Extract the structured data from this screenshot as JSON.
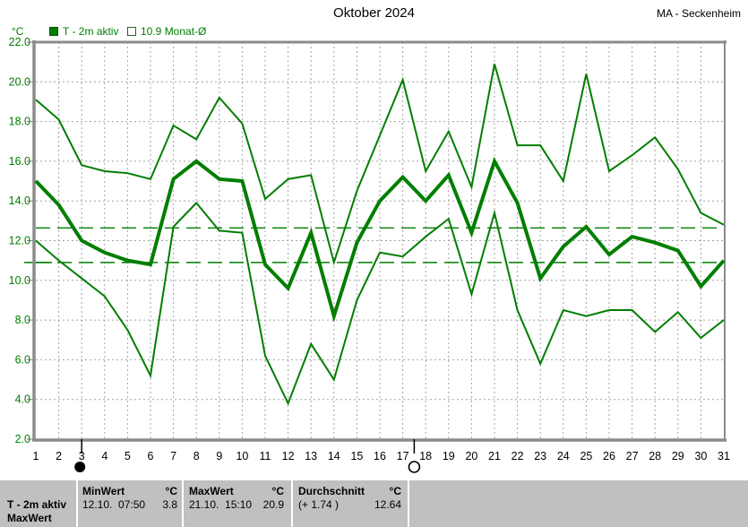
{
  "header": {
    "title": "Oktober 2024",
    "station": "MA - Seckenheim"
  },
  "legend": {
    "unit_label": "°C",
    "active_series_label": "T - 2m aktiv",
    "month_avg_label": "10.9 Monat-Ø"
  },
  "colors": {
    "line_green": "#007e00",
    "label_green": "#007e00",
    "grid_gray": "#a3a3a3",
    "frame_gray": "#8b8b8b",
    "panel_gray": "#c0c0c0",
    "text_black": "#000000"
  },
  "chart_data": {
    "type": "line",
    "title": "Oktober 2024",
    "xlabel": "",
    "ylabel": "°C",
    "ylim": [
      2,
      22
    ],
    "ytick_step": 2,
    "ytick_labels": [
      "22.0",
      "20.0",
      "18.0",
      "16.0",
      "14.0",
      "12.0",
      "10.0",
      "8.0",
      "6.0",
      "4.0",
      "2.0"
    ],
    "grid": true,
    "legend_position": "top-left",
    "categories": [
      1,
      2,
      3,
      4,
      5,
      6,
      7,
      8,
      9,
      10,
      11,
      12,
      13,
      14,
      15,
      16,
      17,
      18,
      19,
      20,
      21,
      22,
      23,
      24,
      25,
      26,
      27,
      28,
      29,
      30,
      31
    ],
    "series": [
      {
        "name": "daily_max",
        "style": "thin",
        "values": [
          19.1,
          18.1,
          15.8,
          15.5,
          15.4,
          15.1,
          17.8,
          17.1,
          19.2,
          17.9,
          14.1,
          15.1,
          15.3,
          10.9,
          14.5,
          17.3,
          20.1,
          15.5,
          17.5,
          14.7,
          20.9,
          16.8,
          16.8,
          15.0,
          20.4,
          15.5,
          16.3,
          17.2,
          15.6,
          13.4,
          12.8
        ]
      },
      {
        "name": "daily_min",
        "style": "thin",
        "values": [
          12.0,
          11.0,
          10.1,
          9.2,
          7.5,
          5.2,
          12.7,
          13.9,
          12.5,
          12.4,
          6.2,
          3.8,
          6.8,
          5.0,
          9.0,
          11.4,
          11.2,
          12.2,
          13.1,
          9.3,
          13.4,
          8.5,
          5.8,
          8.5,
          8.2,
          8.5,
          8.5,
          7.4,
          8.4,
          7.1,
          8.0
        ]
      },
      {
        "name": "daily_mean_T2m_aktiv",
        "style": "thick",
        "values": [
          15.0,
          13.8,
          12.0,
          11.4,
          11.0,
          10.8,
          15.1,
          16.0,
          15.1,
          15.0,
          10.8,
          9.6,
          12.4,
          8.2,
          11.9,
          14.0,
          15.2,
          14.0,
          15.3,
          12.4,
          16.0,
          13.9,
          10.1,
          11.7,
          12.7,
          11.3,
          12.2,
          11.9,
          11.5,
          9.7,
          11.0
        ]
      }
    ],
    "reference_lines": [
      {
        "name": "monats_durchschnitt",
        "value": 12.64,
        "style": "dashed"
      },
      {
        "name": "monat_klima_mittel",
        "label": "10.9 Monat-Ø",
        "value": 10.9,
        "style": "dashed",
        "axis_marker": true
      }
    ],
    "markers": [
      {
        "symbol": "new-moon",
        "day": 3
      },
      {
        "symbol": "full-moon",
        "day": 17.5
      }
    ]
  },
  "stats_table": {
    "row1_label": "T - 2m aktiv",
    "row2_label": "MaxWert",
    "columns": [
      {
        "header": "MinWert",
        "unit": "°C",
        "datetime": "12.10.  07:50",
        "value": "3.8"
      },
      {
        "header": "MaxWert",
        "unit": "°C",
        "datetime": "21.10.  15:10",
        "value": "20.9"
      },
      {
        "header": "Durchschnitt",
        "unit": "°C",
        "datetime": "(+ 1.74 )",
        "value": "12.64"
      }
    ]
  }
}
